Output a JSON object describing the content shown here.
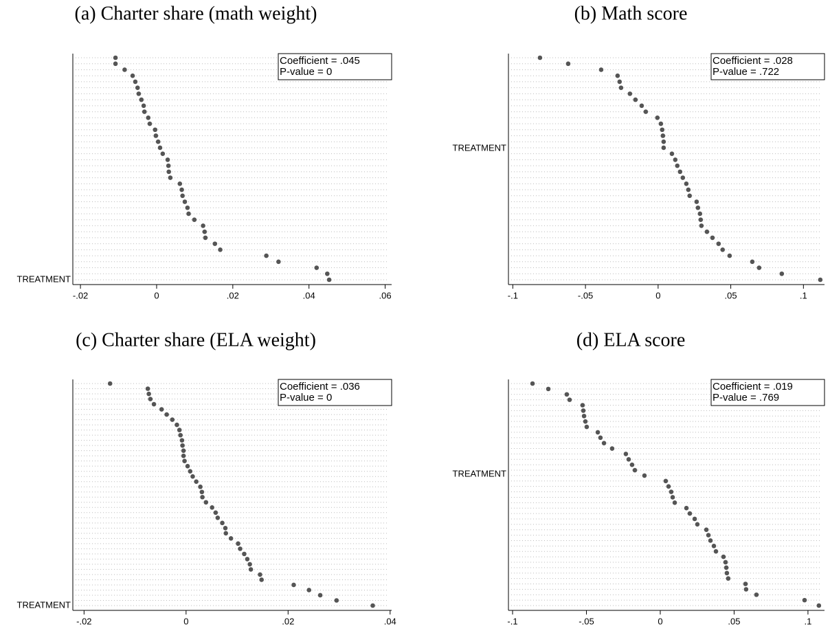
{
  "chart_data": [
    {
      "type": "dot",
      "title": "(a) Charter share (math weight)",
      "ylabel": "TREATMENT",
      "annotations": [
        "Coefficient = .045",
        "P-value = 0"
      ],
      "color": "#555555",
      "xlim": [
        -0.022,
        0.0617
      ],
      "xticks": [
        {
          "value": -0.02,
          "label": "-.02"
        },
        0,
        {
          "value": 0.02,
          "label": ".02"
        },
        {
          "value": 0.04,
          "label": ".04"
        },
        {
          "value": 0.06,
          "label": ".06"
        }
      ],
      "values": [
        -0.0108,
        -0.0108,
        -0.0084,
        -0.0063,
        -0.0056,
        -0.005,
        -0.0047,
        -0.004,
        -0.0034,
        -0.0032,
        -0.0022,
        -0.0018,
        -0.0004,
        -0.0002,
        0.0004,
        0.0009,
        0.0016,
        0.0029,
        0.0031,
        0.0032,
        0.0036,
        0.0061,
        0.0066,
        0.0068,
        0.0074,
        0.0081,
        0.0084,
        0.0099,
        0.0122,
        0.0126,
        0.0128,
        0.0153,
        0.0167,
        0.0288,
        0.032,
        0.042,
        0.0448,
        0.0453
      ]
    },
    {
      "type": "dot",
      "title": "(b) Math score",
      "ylabel": "TREATMENT",
      "annotations": [
        "Coefficient = .028",
        "P-value = .722"
      ],
      "color": "#555555",
      "xlim": [
        -0.103,
        0.1145
      ],
      "xticks": [
        {
          "value": -0.1,
          "label": "-.1"
        },
        {
          "value": -0.05,
          "label": "-.05"
        },
        0,
        {
          "value": 0.05,
          "label": ".05"
        },
        {
          "value": 0.1,
          "label": ".1"
        }
      ],
      "values": [
        -0.0813,
        -0.0619,
        -0.0392,
        -0.0279,
        -0.0265,
        -0.0255,
        -0.0194,
        -0.0156,
        -0.0113,
        -0.0085,
        -0.0005,
        0.0019,
        0.0028,
        0.0033,
        0.0038,
        0.0038,
        0.0095,
        0.0118,
        0.0132,
        0.0151,
        0.017,
        0.0194,
        0.0208,
        0.0217,
        0.0265,
        0.0274,
        0.0288,
        0.0293,
        0.0298,
        0.0336,
        0.0374,
        0.0416,
        0.0444,
        0.0492,
        0.0648,
        0.0695,
        0.0851,
        0.1116
      ]
    },
    {
      "type": "dot",
      "title": "(c) Charter share (ELA weight)",
      "ylabel": "TREATMENT",
      "annotations": [
        "Coefficient = .036",
        "P-value = 0"
      ],
      "color": "#555555",
      "xlim": [
        -0.0222,
        0.0403
      ],
      "xticks": [
        {
          "value": -0.02,
          "label": "-.02"
        },
        0,
        {
          "value": 0.02,
          "label": ".02"
        },
        {
          "value": 0.04,
          "label": ".04"
        }
      ],
      "values": [
        -0.0149,
        -0.0075,
        -0.0073,
        -0.007,
        -0.0063,
        -0.0048,
        -0.0038,
        -0.0027,
        -0.0018,
        -0.0013,
        -0.0011,
        -0.0008,
        -0.0007,
        -0.0005,
        -0.0005,
        -0.0003,
        0.0003,
        0.0008,
        0.0013,
        0.002,
        0.0028,
        0.0031,
        0.0032,
        0.0039,
        0.0051,
        0.0058,
        0.0062,
        0.0071,
        0.0077,
        0.0078,
        0.0088,
        0.0102,
        0.0106,
        0.0114,
        0.012,
        0.0125,
        0.0127,
        0.0145,
        0.0148,
        0.0211,
        0.0241,
        0.0263,
        0.0295,
        0.0366
      ]
    },
    {
      "type": "dot",
      "title": "(d) ELA score",
      "ylabel": "TREATMENT",
      "annotations": [
        "Coefficient = .019",
        "P-value = .769"
      ],
      "color": "#555555",
      "xlim": [
        -0.1028,
        0.1112
      ],
      "xticks": [
        {
          "value": -0.1,
          "label": "-.1"
        },
        {
          "value": -0.05,
          "label": "-.05"
        },
        0,
        {
          "value": 0.05,
          "label": ".05"
        },
        {
          "value": 0.1,
          "label": ".1"
        }
      ],
      "values": [
        -0.0865,
        -0.0758,
        -0.0633,
        -0.0614,
        -0.0526,
        -0.0521,
        -0.0516,
        -0.0507,
        -0.0498,
        -0.0423,
        -0.0405,
        -0.0381,
        -0.0326,
        -0.0233,
        -0.0214,
        -0.0191,
        -0.0172,
        -0.0107,
        0.0037,
        0.0056,
        0.0074,
        0.0084,
        0.0098,
        0.0177,
        0.02,
        0.0233,
        0.0251,
        0.0312,
        0.0326,
        0.034,
        0.0363,
        0.0377,
        0.0428,
        0.0442,
        0.0447,
        0.0451,
        0.046,
        0.0577,
        0.0581,
        0.0651,
        0.0977,
        0.1074
      ]
    }
  ]
}
